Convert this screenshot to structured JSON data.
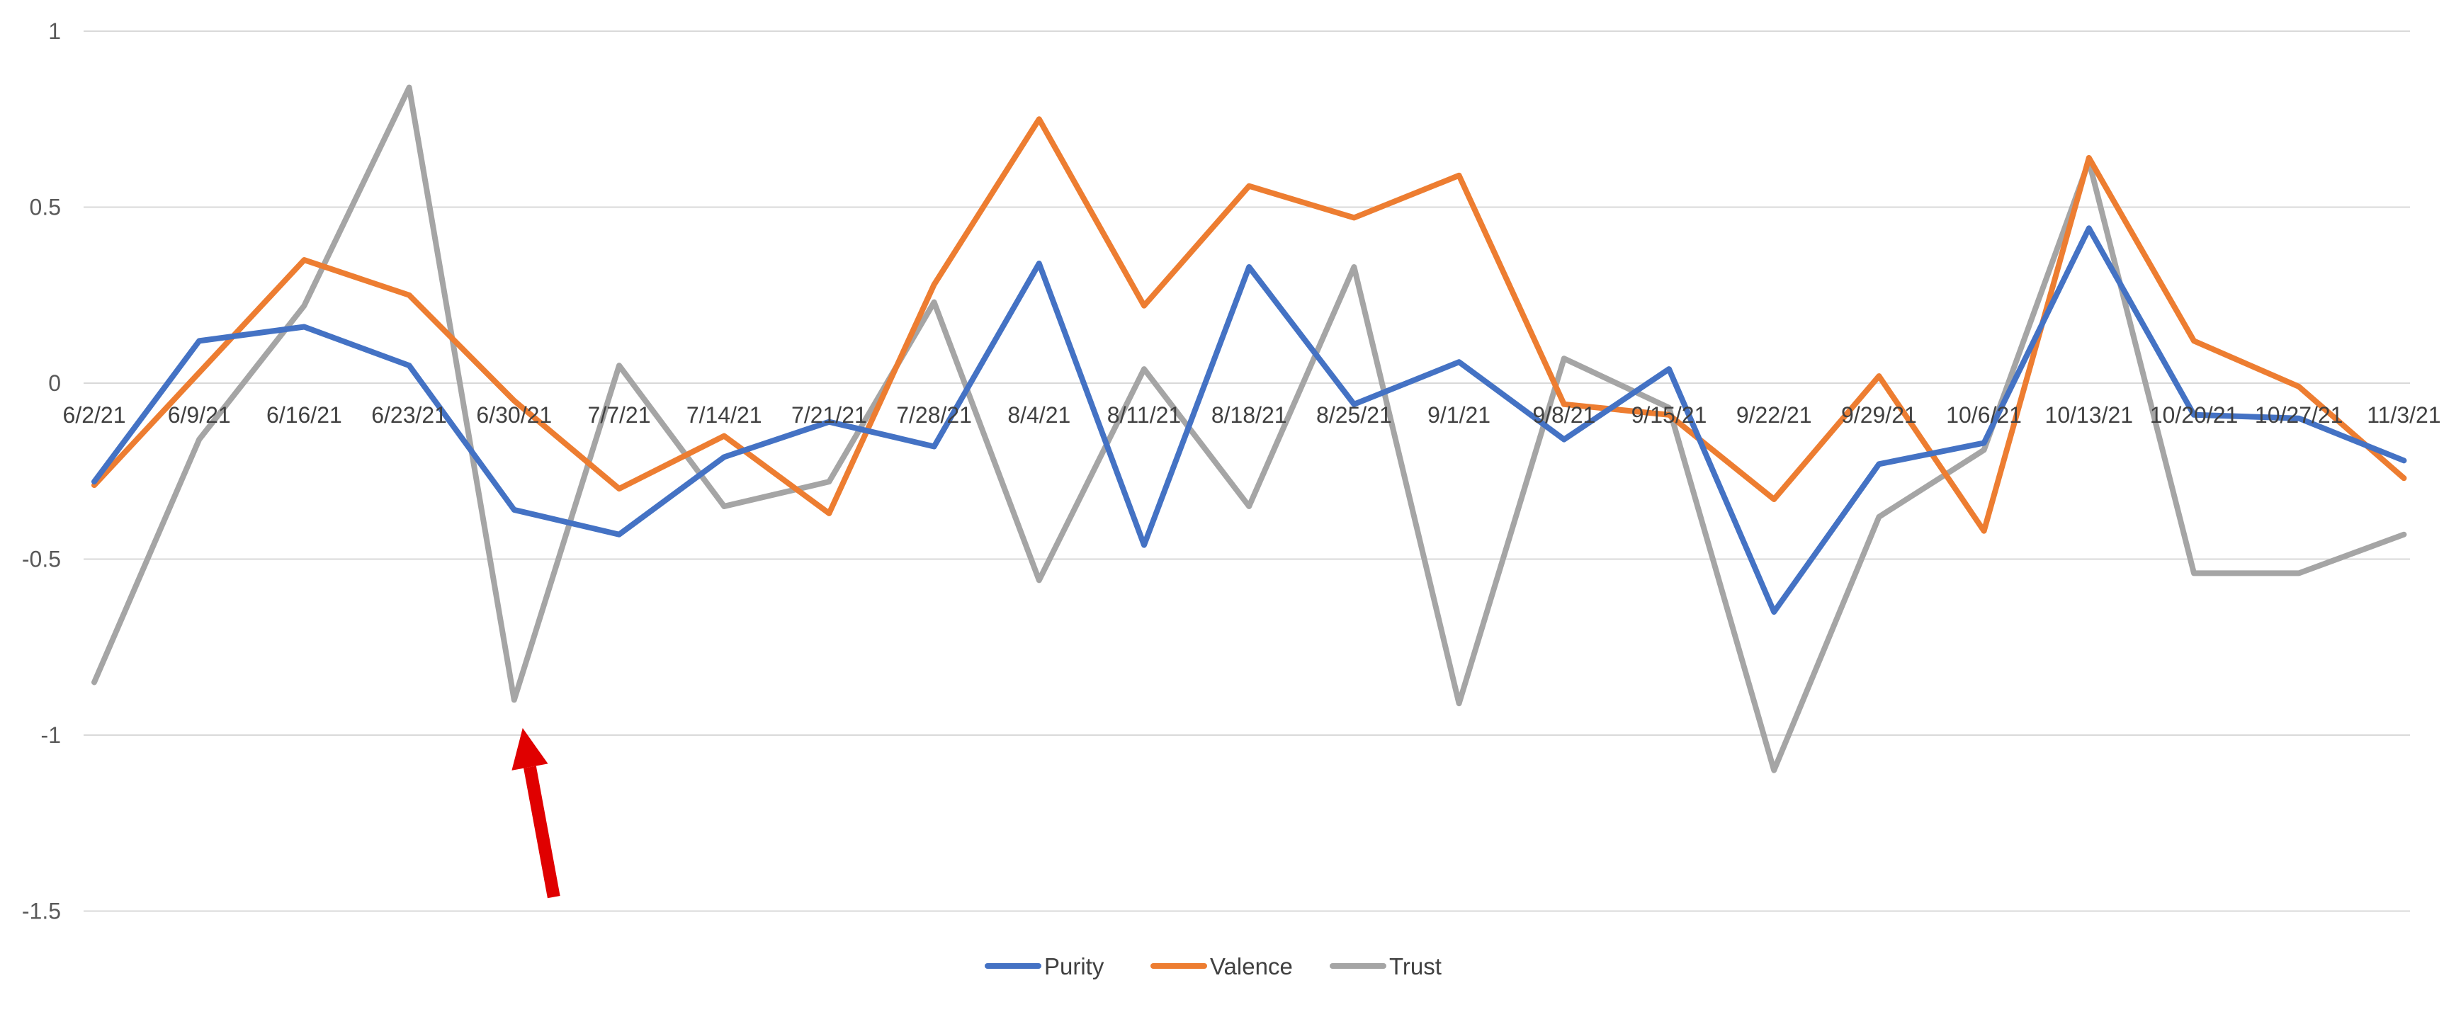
{
  "chart_data": {
    "type": "line",
    "title": "",
    "xlabel": "",
    "ylabel": "",
    "ylim": [
      -1.5,
      1
    ],
    "yticks": [
      1,
      0.5,
      0,
      -0.5,
      -1,
      -1.5
    ],
    "ytick_labels": [
      "1",
      "0.5",
      "0",
      "-0.5",
      "-1",
      "-1.5"
    ],
    "grid": true,
    "legend_position": "bottom",
    "categories": [
      "6/2/21",
      "6/9/21",
      "6/16/21",
      "6/23/21",
      "6/30/21",
      "7/7/21",
      "7/14/21",
      "7/21/21",
      "7/28/21",
      "8/4/21",
      "8/11/21",
      "8/18/21",
      "8/25/21",
      "9/1/21",
      "9/8/21",
      "9/15/21",
      "9/22/21",
      "9/29/21",
      "10/6/21",
      "10/13/21",
      "10/20/21",
      "10/27/21",
      "11/3/21"
    ],
    "series": [
      {
        "name": "Purity",
        "color": "#4472c4",
        "values": [
          -0.28,
          0.12,
          0.16,
          0.05,
          -0.36,
          -0.43,
          -0.21,
          -0.11,
          -0.18,
          0.34,
          -0.46,
          0.33,
          -0.06,
          0.06,
          -0.16,
          0.04,
          -0.65,
          -0.23,
          -0.17,
          0.44,
          -0.09,
          -0.1,
          -0.22
        ]
      },
      {
        "name": "Valence",
        "color": "#ed7d31",
        "values": [
          -0.29,
          0.03,
          0.35,
          0.25,
          -0.05,
          -0.3,
          -0.15,
          -0.37,
          0.28,
          0.75,
          0.22,
          0.56,
          0.47,
          0.59,
          -0.06,
          -0.09,
          -0.33,
          0.02,
          -0.42,
          0.64,
          0.12,
          -0.01,
          -0.27
        ]
      },
      {
        "name": "Trust",
        "color": "#a5a5a5",
        "values": [
          -0.85,
          -0.16,
          0.22,
          0.84,
          -0.9,
          0.05,
          -0.35,
          -0.28,
          0.23,
          -0.56,
          0.04,
          -0.35,
          0.33,
          -0.91,
          0.07,
          -0.07,
          -1.1,
          -0.38,
          -0.19,
          0.63,
          -0.54,
          -0.54,
          -0.43
        ]
      }
    ],
    "annotations": [
      {
        "type": "arrow",
        "color": "#e00000",
        "points_to_category": "6/30/21",
        "tip_value": -0.98,
        "tail_value": -1.46
      }
    ]
  }
}
